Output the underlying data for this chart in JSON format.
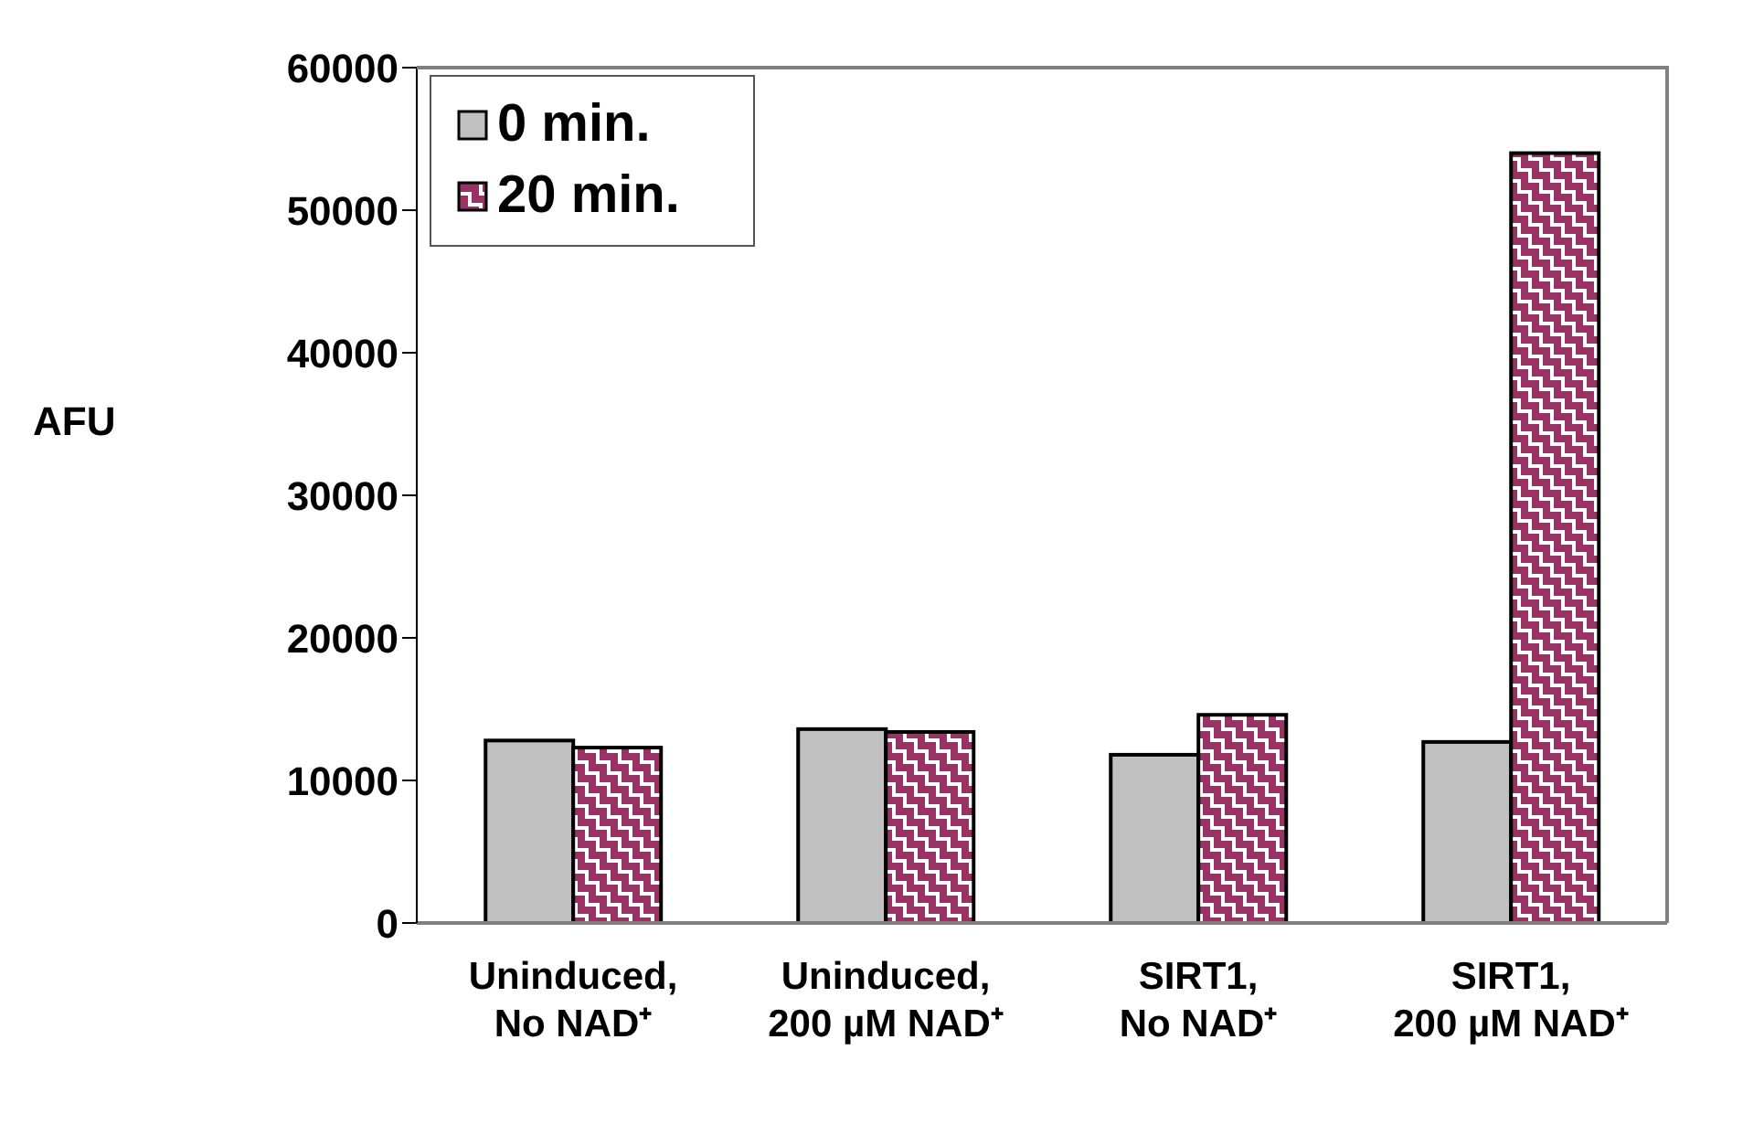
{
  "chart_data": {
    "type": "bar",
    "ylabel": "AFU",
    "categories": [
      "Uninduced, No NAD⁺",
      "Uninduced, 200 µM NAD⁺",
      "SIRT1, No NAD⁺",
      "SIRT1, 200 µM NAD⁺"
    ],
    "series": [
      {
        "name": "0 min.",
        "color": "#c0c0c0",
        "values": [
          12800,
          13600,
          11800,
          12700
        ]
      },
      {
        "name": "20 min.",
        "color": "#993366",
        "values": [
          12300,
          13400,
          14600,
          54000
        ]
      }
    ],
    "ylim": [
      0,
      60000
    ],
    "yticks": [
      0,
      10000,
      20000,
      30000,
      40000,
      50000,
      60000
    ],
    "grid": false,
    "legend": "top left"
  }
}
